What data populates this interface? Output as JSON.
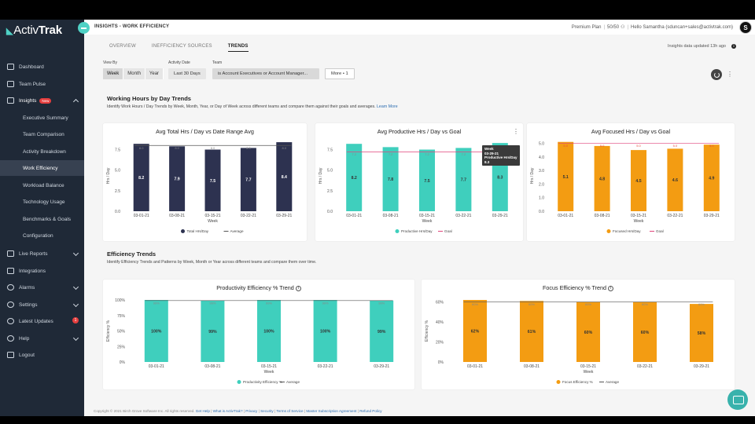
{
  "app": {
    "brand_name_bold": "Activ",
    "brand_name_thin": "Trak"
  },
  "sidebar": {
    "items": [
      {
        "label": "Dashboard"
      },
      {
        "label": "Team Pulse"
      },
      {
        "label": "Insights",
        "badge": "New"
      },
      {
        "label": "Live Reports"
      },
      {
        "label": "Integrations"
      },
      {
        "label": "Alarms"
      },
      {
        "label": "Settings"
      },
      {
        "label": "Latest Updates",
        "badge": "1"
      },
      {
        "label": "Help"
      },
      {
        "label": "Logout"
      }
    ],
    "insights_sub": [
      "Executive Summary",
      "Team Comparison",
      "Activity Breakdown",
      "Work Efficiency",
      "Workload Balance",
      "Technology Usage",
      "Benchmarks & Goals",
      "Configuration"
    ]
  },
  "header": {
    "breadcrumb": "INSIGHTS - WORK EFFICIENCY",
    "plan": "Premium Plan",
    "seats": "50/50",
    "greeting": "Hello Samantha (sduncan+sales@activtrak.com)",
    "avatar_letter": "S"
  },
  "tabs": [
    "OVERVIEW",
    "INEFFICIENCY SOURCES",
    "TRENDS"
  ],
  "updated_text": "Insights data updated 13h ago",
  "filters": {
    "view_by_label": "View By",
    "view_by_options": [
      "Week",
      "Month",
      "Year"
    ],
    "activity_date_label": "Activity Date",
    "activity_date_value": "Last 30 Days",
    "team_label": "Team",
    "team_value": "is Account Executives or Account Manager...",
    "more_label": "More • 1"
  },
  "section1": {
    "title": "Working Hours by Day Trends",
    "desc": "Identify Work Hours / Day Trends by Week, Month, Year, or Day of Week across different teams and compare them against their goals and averages.",
    "link": "Learn More"
  },
  "section2": {
    "title": "Efficiency Trends",
    "desc": "Identify Efficiency Trends and Patterns by Week, Month or Year across different teams and compare them over time."
  },
  "tooltip": {
    "lines": [
      "Week",
      "03-29-21",
      "Productive Hrs/Day",
      "8.3"
    ]
  },
  "footer": {
    "copyright": "Copyright © 2021 Birch Grove Software Inc. All rights reserved.",
    "links": [
      "Get Help",
      "What is ActivTrak?",
      "Privacy",
      "Security",
      "Terms of Service",
      "Master Subscription Agreement",
      "Refund Policy"
    ]
  },
  "colors": {
    "navy": "#2d3250",
    "teal": "#3fcfbd",
    "orange": "#f39c12",
    "goal": "#e0457b"
  },
  "chart_data": [
    {
      "type": "bar",
      "title": "Avg Total Hrs / Day vs Date Range Avg",
      "xlabel": "Week",
      "ylabel": "Hrs / Day",
      "categories": [
        "03-01-21",
        "03-08-21",
        "03-15-21",
        "03-22-21",
        "03-29-21"
      ],
      "values": [
        8.2,
        7.9,
        7.5,
        7.7,
        8.4
      ],
      "value_labels": [
        "8.2",
        "7.9",
        "7.5",
        "7.7",
        "8.4"
      ],
      "ref_value": 8.0,
      "ref_marks": [
        "8.0",
        "8.0",
        "8.0",
        "8.0",
        "8.0"
      ],
      "yticks": [
        "0.0",
        "2.5",
        "5.0",
        "7.5"
      ],
      "ylim": [
        0,
        8.6
      ],
      "legend": [
        "Total Hrs/Day",
        "Average"
      ]
    },
    {
      "type": "bar",
      "title": "Avg Productive Hrs / Day vs Goal",
      "xlabel": "Week",
      "ylabel": "Hrs / Day",
      "categories": [
        "03-01-21",
        "03-08-21",
        "03-15-21",
        "03-22-21",
        "03-29-21"
      ],
      "values": [
        8.2,
        7.8,
        7.5,
        7.7,
        8.3
      ],
      "value_labels": [
        "8.2",
        "7.8",
        "7.5",
        "7.7",
        "8.3"
      ],
      "ref_value": 7.2,
      "ref_marks": [
        "7.2",
        "7.2",
        "7.2",
        "7.2",
        "7.2"
      ],
      "yticks": [
        "0.0",
        "2.5",
        "5.0",
        "7.5"
      ],
      "ylim": [
        0,
        8.6
      ],
      "legend": [
        "Productive Hrs/Day",
        "Goal"
      ]
    },
    {
      "type": "bar",
      "title": "Avg Focused Hrs / Day vs Goal",
      "xlabel": "Week",
      "ylabel": "Hrs / Day",
      "categories": [
        "03-01-21",
        "03-08-21",
        "03-15-21",
        "03-22-21",
        "03-29-21"
      ],
      "values": [
        5.1,
        4.8,
        4.5,
        4.6,
        4.9
      ],
      "value_labels": [
        "5.1",
        "4.8",
        "4.5",
        "4.6",
        "4.9"
      ],
      "ref_value": 5.0,
      "ref_marks": [
        "5.0",
        "5.0",
        "5.0",
        "5.0",
        "5.0"
      ],
      "yticks": [
        "0.0",
        "1.0",
        "2.0",
        "3.0",
        "4.0",
        "5.0"
      ],
      "ylim": [
        0,
        5.2
      ],
      "legend": [
        "Focused Hrs/Day",
        "Goal"
      ]
    },
    {
      "type": "bar",
      "title": "Productivity Efficiency % Trend",
      "xlabel": "Week",
      "ylabel": "Efficiency %",
      "categories": [
        "03-01-21",
        "03-08-21",
        "03-15-21",
        "03-22-21",
        "03-29-21"
      ],
      "values": [
        100,
        99,
        100,
        100,
        99
      ],
      "value_labels": [
        "100%",
        "99%",
        "100%",
        "100%",
        "99%"
      ],
      "ref_value": 99,
      "ref_marks": [
        "99%",
        "99%",
        "99%",
        "99%",
        "99%"
      ],
      "yticks": [
        "0%",
        "25%",
        "50%",
        "75%",
        "100%"
      ],
      "ylim": [
        0,
        100
      ],
      "legend": [
        "Productivity Efficiency %",
        "Average"
      ]
    },
    {
      "type": "bar",
      "title": "Focus Efficiency % Trend",
      "xlabel": "Week",
      "ylabel": "Efficiency %",
      "categories": [
        "03-01-21",
        "03-08-21",
        "03-15-21",
        "03-22-21",
        "03-29-21"
      ],
      "values": [
        62,
        61,
        60,
        60,
        58
      ],
      "value_labels": [
        "62%",
        "61%",
        "60%",
        "60%",
        "58%"
      ],
      "ref_value": 60,
      "ref_marks": [
        "60%",
        "60%",
        "60%",
        "60%",
        "60%"
      ],
      "yticks": [
        "0%",
        "20%",
        "40%",
        "60%"
      ],
      "ylim": [
        0,
        62
      ],
      "legend": [
        "Focus Efficiency %",
        "Average"
      ]
    }
  ]
}
